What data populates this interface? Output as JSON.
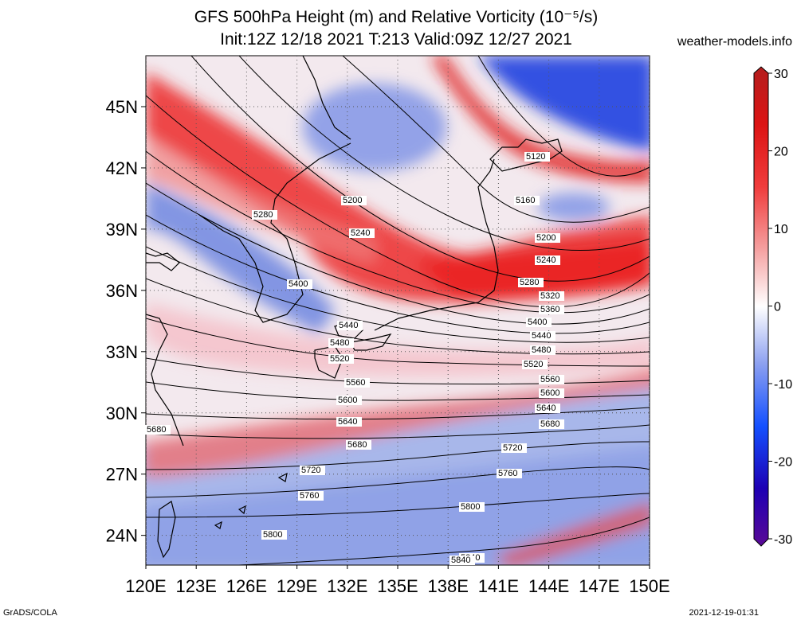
{
  "header": {
    "title_line1": "GFS 500hPa Height (m) and Relative Vorticity (10⁻⁵/s)",
    "title_line2": "Init:12Z 12/18 2021 T:213 Valid:09Z 12/27 2021",
    "site": "weather-models.info"
  },
  "footer": {
    "left": "GrADS/COLA",
    "right": "2021-12-19-01:31"
  },
  "map": {
    "lat_labels": [
      "45N",
      "42N",
      "39N",
      "36N",
      "33N",
      "30N",
      "27N",
      "24N"
    ],
    "lon_labels": [
      "120E",
      "123E",
      "126E",
      "129E",
      "132E",
      "135E",
      "138E",
      "141E",
      "144E",
      "147E",
      "150E"
    ],
    "lat_range": [
      22.5,
      47.5
    ],
    "lon_range": [
      120,
      150
    ],
    "contour_labels": [
      "5120",
      "5160",
      "5200",
      "5240",
      "5280",
      "5320",
      "5360",
      "5400",
      "5440",
      "5480",
      "5520",
      "5560",
      "5600",
      "5640",
      "5680",
      "5720",
      "5760",
      "5800",
      "5840"
    ],
    "left_labels": [
      "5200",
      "5240",
      "5280",
      "5400",
      "5440",
      "5480",
      "5520",
      "5560",
      "5600",
      "5640",
      "5680",
      "5720",
      "5760",
      "5800",
      "5840",
      "5680"
    ]
  },
  "colorbar": {
    "ticks": [
      "30",
      "20",
      "10",
      "0",
      "-10",
      "-20",
      "-30"
    ],
    "colors": [
      "#6b0aa0",
      "#2a00b4",
      "#0a32ff",
      "#5a82f0",
      "#a0b4f0",
      "#ffffff",
      "#f7b4b4",
      "#f27878",
      "#eb2d28",
      "#d21e1e",
      "#b41e1e"
    ]
  }
}
